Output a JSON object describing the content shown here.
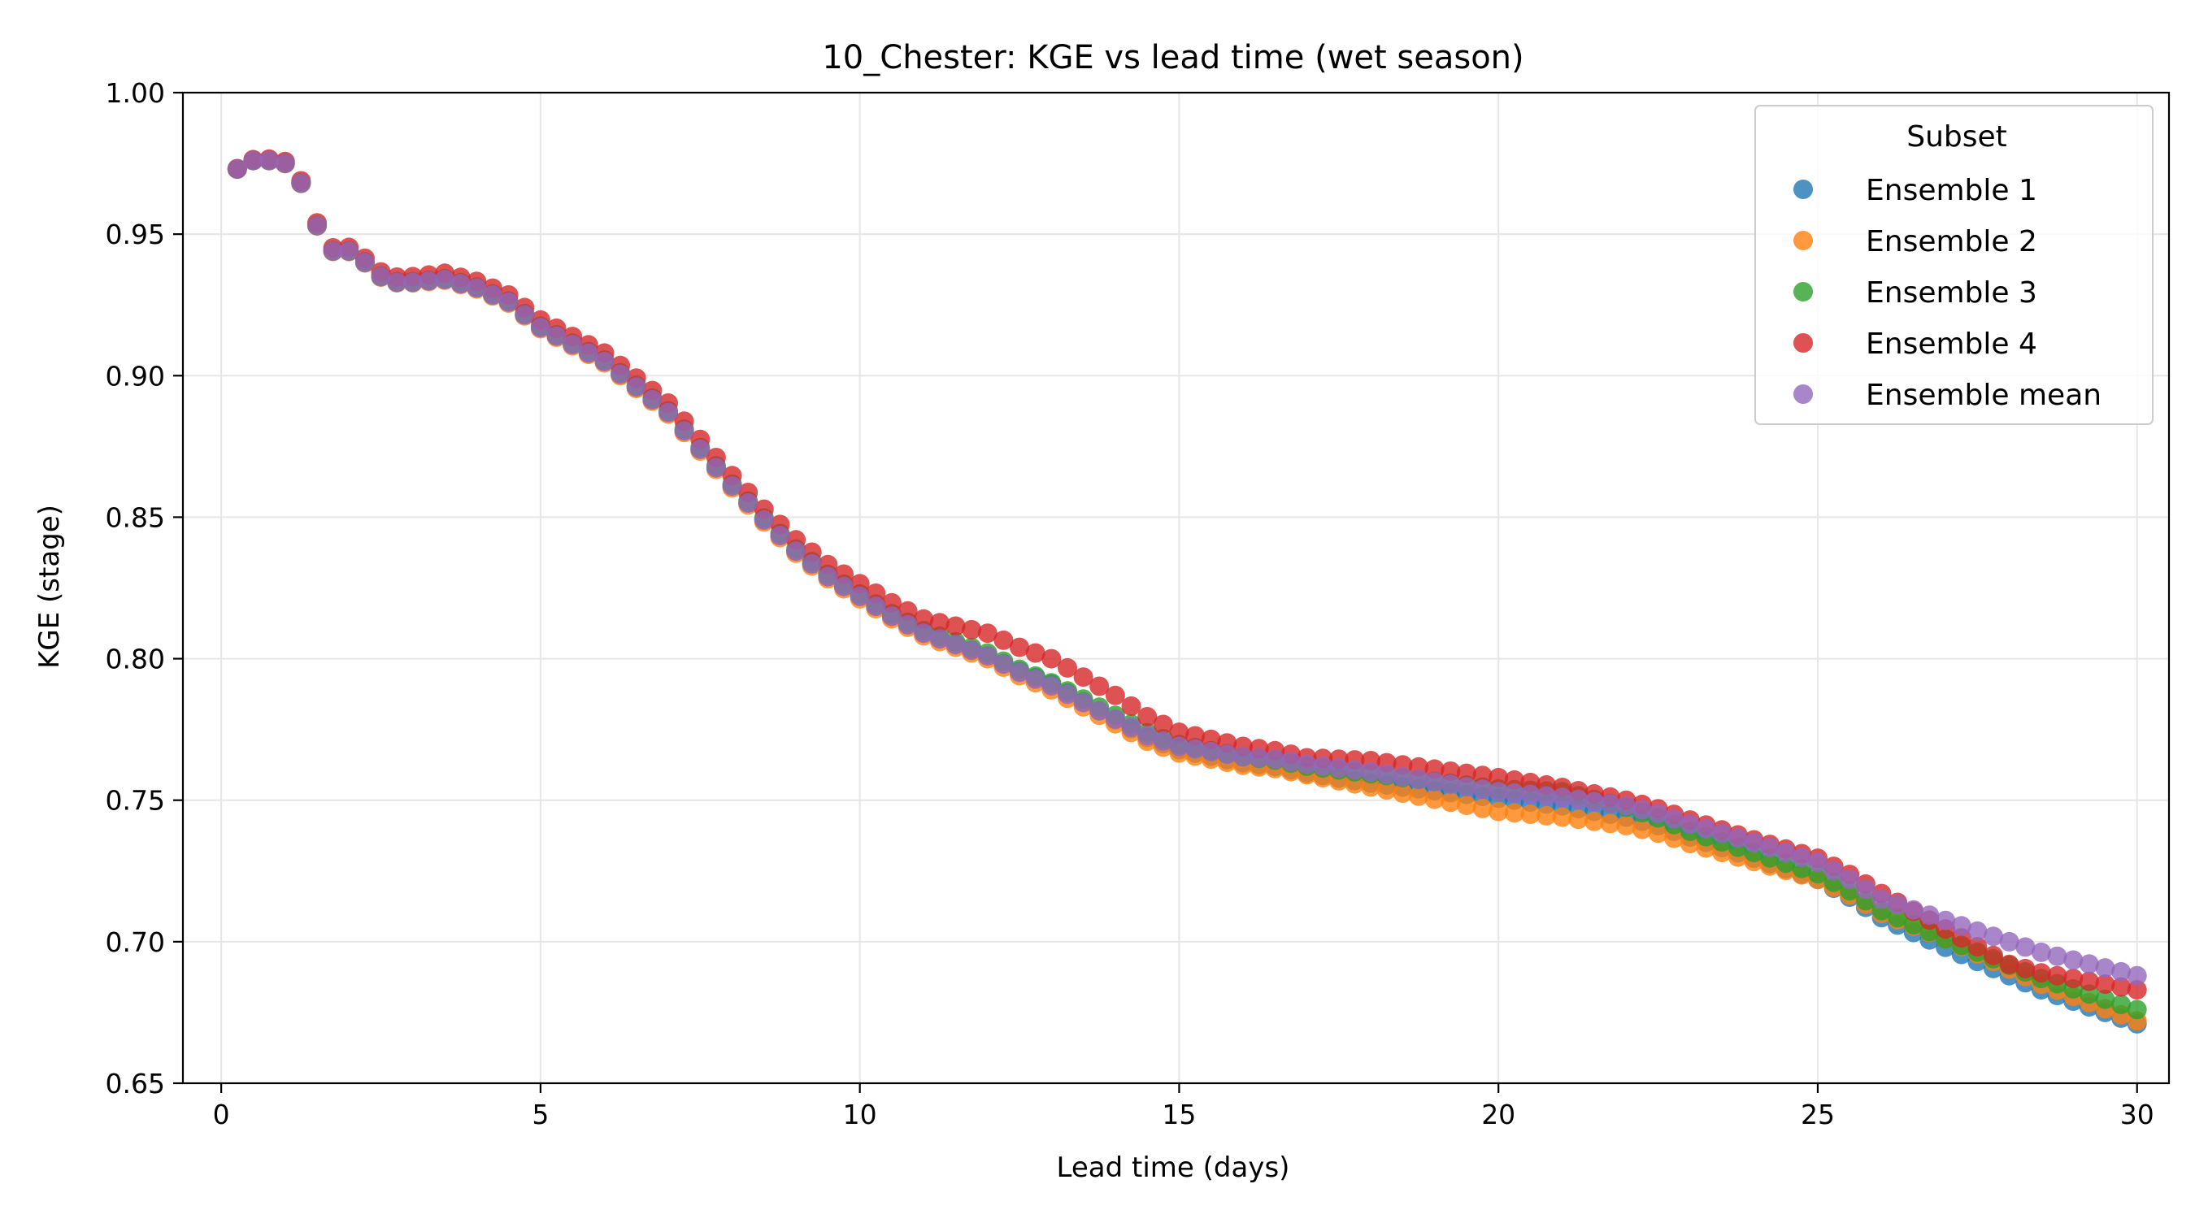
{
  "chart_data": {
    "type": "scatter",
    "title": "10_Chester: KGE vs lead time (wet season)",
    "xlabel": "Lead time (days)",
    "ylabel": "KGE (stage)",
    "xlim": [
      -0.6,
      30.5
    ],
    "ylim": [
      0.65,
      1.0
    ],
    "xticks": [
      0,
      5,
      10,
      15,
      20,
      25,
      30
    ],
    "yticks": [
      0.65,
      0.7,
      0.75,
      0.8,
      0.85,
      0.9,
      0.95,
      1.0
    ],
    "xtick_labels": [
      "0",
      "5",
      "10",
      "15",
      "20",
      "25",
      "30"
    ],
    "ytick_labels": [
      "0.65",
      "0.70",
      "0.75",
      "0.80",
      "0.85",
      "0.90",
      "0.95",
      "1.00"
    ],
    "grid": true,
    "legend": {
      "title": "Subset",
      "placement": "top-right"
    },
    "x_step": 0.25,
    "x_start": 0.25,
    "base_anchors": [
      [
        0.25,
        0.973
      ],
      [
        0.5,
        0.976
      ],
      [
        0.75,
        0.976
      ],
      [
        1.0,
        0.975
      ],
      [
        1.25,
        0.968
      ],
      [
        1.5,
        0.953
      ],
      [
        1.75,
        0.944
      ],
      [
        2.0,
        0.944
      ],
      [
        2.25,
        0.94
      ],
      [
        2.5,
        0.935
      ],
      [
        2.75,
        0.933
      ],
      [
        3.0,
        0.933
      ],
      [
        3.5,
        0.934
      ],
      [
        4.0,
        0.931
      ],
      [
        4.5,
        0.926
      ],
      [
        5.0,
        0.917
      ],
      [
        5.5,
        0.911
      ],
      [
        6.0,
        0.905
      ],
      [
        6.5,
        0.896
      ],
      [
        7.0,
        0.887
      ],
      [
        7.5,
        0.874
      ],
      [
        8.0,
        0.861
      ],
      [
        8.5,
        0.849
      ],
      [
        9.0,
        0.838
      ],
      [
        9.5,
        0.829
      ],
      [
        10.0,
        0.822
      ],
      [
        10.5,
        0.815
      ],
      [
        11.0,
        0.809
      ],
      [
        11.5,
        0.805
      ],
      [
        12.0,
        0.801
      ],
      [
        12.5,
        0.795
      ],
      [
        13.0,
        0.79
      ],
      [
        13.5,
        0.784
      ],
      [
        14.0,
        0.778
      ],
      [
        14.5,
        0.772
      ],
      [
        15.0,
        0.768
      ],
      [
        15.5,
        0.766
      ],
      [
        16.0,
        0.764
      ],
      [
        16.5,
        0.763
      ],
      [
        17.0,
        0.761
      ],
      [
        18.0,
        0.758
      ],
      [
        19.0,
        0.755
      ],
      [
        20.0,
        0.752
      ],
      [
        21.0,
        0.749
      ],
      [
        22.0,
        0.745
      ],
      [
        22.5,
        0.742
      ],
      [
        23.0,
        0.738
      ],
      [
        24.0,
        0.731
      ],
      [
        25.0,
        0.724
      ],
      [
        25.5,
        0.718
      ],
      [
        26.0,
        0.711
      ],
      [
        26.5,
        0.706
      ],
      [
        27.0,
        0.701
      ],
      [
        27.5,
        0.696
      ],
      [
        28.0,
        0.691
      ],
      [
        28.5,
        0.686
      ],
      [
        29.0,
        0.682
      ],
      [
        29.5,
        0.678
      ],
      [
        30.0,
        0.674
      ]
    ],
    "series": [
      {
        "name": "Ensemble 1",
        "color": "#1f77b4",
        "offsets": [
          [
            0,
            0
          ],
          [
            12,
            0
          ],
          [
            13,
            0.001
          ],
          [
            18,
            -0.002
          ],
          [
            21,
            -0.001
          ],
          [
            23,
            -0.001
          ],
          [
            25,
            -0.002
          ],
          [
            27,
            -0.003
          ],
          [
            30,
            -0.003
          ]
        ]
      },
      {
        "name": "Ensemble 2",
        "color": "#ff7f0e",
        "offsets": [
          [
            0,
            0
          ],
          [
            12,
            -0.001
          ],
          [
            14,
            -0.001
          ],
          [
            17,
            -0.002
          ],
          [
            20,
            -0.006
          ],
          [
            22,
            -0.004
          ],
          [
            25,
            -0.002
          ],
          [
            27,
            0
          ],
          [
            30,
            -0.002
          ]
        ]
      },
      {
        "name": "Ensemble 3",
        "color": "#2ca02c",
        "offsets": [
          [
            0,
            0
          ],
          [
            12,
            0.001
          ],
          [
            14,
            0.002
          ],
          [
            17,
            0.001
          ],
          [
            20,
            0.002
          ],
          [
            21,
            0.004
          ],
          [
            23,
            0.001
          ],
          [
            25,
            0
          ],
          [
            27,
            0
          ],
          [
            30,
            0.002
          ]
        ]
      },
      {
        "name": "Ensemble 4",
        "color": "#d62728",
        "offsets": [
          [
            0,
            0
          ],
          [
            3,
            0.002
          ],
          [
            6,
            0.003
          ],
          [
            9,
            0.004
          ],
          [
            11,
            0.005
          ],
          [
            12,
            0.008
          ],
          [
            13,
            0.01
          ],
          [
            14,
            0.009
          ],
          [
            15,
            0.006
          ],
          [
            17,
            0.004
          ],
          [
            18,
            0.006
          ],
          [
            20,
            0.006
          ],
          [
            22,
            0.005
          ],
          [
            24,
            0.005
          ],
          [
            26,
            0.006
          ],
          [
            28,
            0.001
          ],
          [
            30,
            0.009
          ]
        ]
      },
      {
        "name": "Ensemble mean",
        "color": "#9467bd",
        "offsets": [
          [
            0,
            0
          ],
          [
            12,
            0
          ],
          [
            15,
            0.001
          ],
          [
            18,
            0.002
          ],
          [
            20,
            0.001
          ],
          [
            22,
            0.003
          ],
          [
            24,
            0.004
          ],
          [
            26,
            0.004
          ],
          [
            28,
            0.009
          ],
          [
            30,
            0.014
          ]
        ]
      }
    ]
  }
}
